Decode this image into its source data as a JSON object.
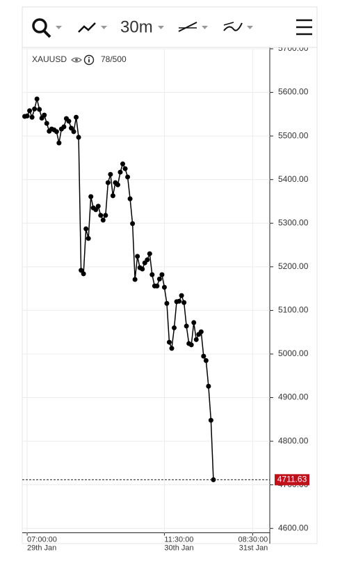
{
  "toolbar": {
    "timeframe": "30m"
  },
  "chart_data": {
    "type": "line",
    "title": "XAUUSD",
    "counter": "78/500",
    "color": "#000000",
    "x": [
      0,
      1,
      2,
      3,
      4,
      5,
      6,
      7,
      8,
      9,
      10,
      11,
      12,
      13,
      14,
      15,
      16,
      17,
      18,
      19,
      20,
      21,
      22,
      23,
      24,
      25,
      26,
      27,
      28,
      29,
      30,
      31,
      32,
      33,
      34,
      35,
      36,
      37,
      38,
      39,
      40,
      41,
      42,
      43,
      44,
      45,
      46,
      47,
      48,
      49,
      50,
      51,
      52,
      53,
      54,
      55,
      56,
      57,
      58,
      59,
      60,
      61,
      62,
      63,
      64,
      65,
      66,
      67,
      68,
      69,
      70,
      71,
      72,
      73,
      74,
      75,
      76,
      77
    ],
    "values": [
      5545,
      5546,
      5558,
      5543,
      5562,
      5585,
      5561,
      5541,
      5548,
      5529,
      5511,
      5516,
      5514,
      5510,
      5484,
      5516,
      5521,
      5540,
      5534,
      5518,
      5510,
      5543,
      5497,
      5192,
      5184,
      5287,
      5265,
      5361,
      5335,
      5331,
      5339,
      5318,
      5307,
      5318,
      5393,
      5412,
      5363,
      5393,
      5388,
      5417,
      5436,
      5425,
      5406,
      5356,
      5299,
      5171,
      5224,
      5198,
      5195,
      5209,
      5216,
      5230,
      5182,
      5156,
      5156,
      5172,
      5182,
      5153,
      5116,
      5027,
      5013,
      5060,
      5120,
      5121,
      5134,
      5118,
      5064,
      5024,
      5021,
      5072,
      5033,
      5045,
      5051,
      4995,
      4985,
      4926,
      4848,
      4711.63
    ],
    "xlim": [
      -1,
      100
    ],
    "xticks": [
      {
        "value": 1,
        "label": "07:00:00",
        "date": "29th Jan"
      },
      {
        "value": 57,
        "label": "11:30:00",
        "date": "30th Jan"
      },
      {
        "value": 93,
        "label": "08:30:00",
        "date": "31st Jan"
      }
    ],
    "ylim": [
      4590,
      5700
    ],
    "yticks": [
      {
        "value": 5700,
        "label": "5700.00"
      },
      {
        "value": 5600,
        "label": "5600.00"
      },
      {
        "value": 5500,
        "label": "5500.00"
      },
      {
        "value": 5400,
        "label": "5400.00"
      },
      {
        "value": 5300,
        "label": "5300.00"
      },
      {
        "value": 5200,
        "label": "5200.00"
      },
      {
        "value": 5100,
        "label": "5100.00"
      },
      {
        "value": 5000,
        "label": "5000.00"
      },
      {
        "value": 4900,
        "label": "4900.00"
      },
      {
        "value": 4800,
        "label": "4800.00"
      },
      {
        "value": 4700,
        "label": "4700.00"
      },
      {
        "value": 4600,
        "label": "4600.00"
      }
    ],
    "grid": true
  }
}
